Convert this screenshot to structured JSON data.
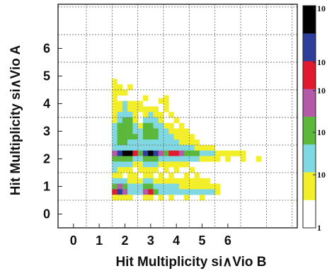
{
  "chart_data": {
    "type": "heatmap",
    "xlabel": "Hit Multiplicity si∧Vio B",
    "ylabel": "Hit Multiplicity si∧Vio A",
    "x_tick_labels": [
      "0",
      "1",
      "2",
      "3",
      "4",
      "5",
      "6"
    ],
    "y_tick_labels": [
      "0",
      "1",
      "2",
      "3",
      "4",
      "5",
      "6"
    ],
    "xlim": [
      -0.6,
      8.7
    ],
    "ylim": [
      -0.5,
      7.6
    ],
    "grid": true,
    "colorbar": {
      "scale": "log",
      "tick_labels": [
        "1",
        "10",
        "10",
        "10",
        "10",
        "10"
      ],
      "colors": [
        "#ffffff",
        "#f2ef2a",
        "#7fd8e2",
        "#5bb83a",
        "#b45aa8",
        "#e21a2d",
        "#2d3f9b",
        "#000000"
      ]
    },
    "cells": [
      [
        1.6,
        4.8,
        1
      ],
      [
        1.6,
        4.6,
        1
      ],
      [
        1.6,
        4.4,
        1
      ],
      [
        1.8,
        4.6,
        1
      ],
      [
        1.8,
        4.4,
        1
      ],
      [
        2.0,
        4.4,
        1
      ],
      [
        2.2,
        4.6,
        1
      ],
      [
        1.6,
        4.2,
        1
      ],
      [
        1.6,
        4.0,
        1
      ],
      [
        1.8,
        4.0,
        1
      ],
      [
        2.0,
        4.0,
        2
      ],
      [
        2.2,
        4.0,
        1
      ],
      [
        2.4,
        4.0,
        1
      ],
      [
        2.6,
        4.0,
        1
      ],
      [
        2.8,
        4.2,
        1
      ],
      [
        3.4,
        4.1,
        1
      ],
      [
        3.6,
        4.0,
        1
      ],
      [
        3.6,
        4.2,
        1
      ],
      [
        1.6,
        3.8,
        1
      ],
      [
        1.6,
        3.6,
        1
      ],
      [
        1.8,
        3.8,
        1
      ],
      [
        2.0,
        3.8,
        2
      ],
      [
        2.2,
        3.8,
        1
      ],
      [
        2.4,
        3.8,
        1
      ],
      [
        2.6,
        3.8,
        1
      ],
      [
        2.8,
        3.8,
        1
      ],
      [
        3.0,
        3.8,
        1
      ],
      [
        3.2,
        3.8,
        1
      ],
      [
        3.6,
        3.8,
        1
      ],
      [
        1.6,
        3.4,
        1
      ],
      [
        1.8,
        3.6,
        2
      ],
      [
        2.0,
        3.6,
        2
      ],
      [
        2.2,
        3.6,
        2
      ],
      [
        2.4,
        3.6,
        1
      ],
      [
        2.8,
        3.6,
        1
      ],
      [
        3.0,
        3.6,
        2
      ],
      [
        3.2,
        3.6,
        1
      ],
      [
        3.4,
        3.6,
        1
      ],
      [
        3.8,
        3.6,
        1
      ],
      [
        1.6,
        3.2,
        2
      ],
      [
        1.8,
        3.4,
        2
      ],
      [
        2.0,
        3.4,
        3
      ],
      [
        2.2,
        3.4,
        3
      ],
      [
        2.4,
        3.4,
        1
      ],
      [
        2.8,
        3.4,
        2
      ],
      [
        3.0,
        3.4,
        2
      ],
      [
        3.2,
        3.4,
        2
      ],
      [
        3.4,
        3.4,
        1
      ],
      [
        4.0,
        3.4,
        1
      ],
      [
        1.6,
        3.0,
        2
      ],
      [
        1.8,
        3.2,
        3
      ],
      [
        2.0,
        3.2,
        3
      ],
      [
        2.2,
        3.2,
        3
      ],
      [
        2.4,
        3.2,
        2
      ],
      [
        2.6,
        3.2,
        1
      ],
      [
        2.8,
        3.2,
        3
      ],
      [
        3.0,
        3.2,
        3
      ],
      [
        3.2,
        3.2,
        2
      ],
      [
        3.4,
        3.2,
        2
      ],
      [
        3.6,
        3.2,
        1
      ],
      [
        3.8,
        3.2,
        1
      ],
      [
        4.2,
        3.2,
        1
      ],
      [
        1.6,
        2.8,
        2
      ],
      [
        1.8,
        3.0,
        3
      ],
      [
        2.0,
        3.0,
        3
      ],
      [
        2.2,
        3.0,
        3
      ],
      [
        2.4,
        3.0,
        2
      ],
      [
        2.6,
        3.0,
        2
      ],
      [
        2.8,
        3.0,
        3
      ],
      [
        3.0,
        3.0,
        3
      ],
      [
        3.2,
        3.0,
        3
      ],
      [
        3.4,
        3.0,
        2
      ],
      [
        3.6,
        3.0,
        2
      ],
      [
        3.8,
        3.0,
        1
      ],
      [
        4.0,
        3.0,
        1
      ],
      [
        4.2,
        3.0,
        1
      ],
      [
        4.4,
        3.0,
        1
      ],
      [
        1.6,
        2.6,
        2
      ],
      [
        1.8,
        2.8,
        3
      ],
      [
        2.0,
        2.8,
        3
      ],
      [
        2.2,
        2.8,
        3
      ],
      [
        2.4,
        2.8,
        3
      ],
      [
        2.6,
        2.8,
        2
      ],
      [
        2.8,
        2.8,
        3
      ],
      [
        3.0,
        2.8,
        3
      ],
      [
        3.2,
        2.8,
        3
      ],
      [
        3.4,
        2.8,
        2
      ],
      [
        3.6,
        2.8,
        2
      ],
      [
        3.8,
        2.8,
        2
      ],
      [
        4.0,
        2.8,
        1
      ],
      [
        4.2,
        2.8,
        1
      ],
      [
        4.4,
        2.8,
        1
      ],
      [
        4.6,
        2.8,
        1
      ],
      [
        1.6,
        2.4,
        2
      ],
      [
        1.8,
        2.6,
        3
      ],
      [
        2.0,
        2.6,
        3
      ],
      [
        2.2,
        2.6,
        2
      ],
      [
        2.4,
        2.6,
        2
      ],
      [
        2.6,
        2.6,
        2
      ],
      [
        2.8,
        2.6,
        2
      ],
      [
        3.0,
        2.6,
        2
      ],
      [
        3.2,
        2.6,
        2
      ],
      [
        3.4,
        2.6,
        2
      ],
      [
        3.6,
        2.6,
        2
      ],
      [
        3.8,
        2.6,
        2
      ],
      [
        4.0,
        2.6,
        2
      ],
      [
        4.2,
        2.6,
        1
      ],
      [
        4.4,
        2.6,
        1
      ],
      [
        4.6,
        2.6,
        1
      ],
      [
        4.8,
        2.6,
        1
      ],
      [
        1.8,
        2.4,
        2
      ],
      [
        2.0,
        2.4,
        2
      ],
      [
        2.2,
        2.4,
        2
      ],
      [
        2.4,
        2.4,
        2
      ],
      [
        2.6,
        2.4,
        2
      ],
      [
        2.8,
        2.4,
        2
      ],
      [
        3.0,
        2.4,
        2
      ],
      [
        3.2,
        2.4,
        2
      ],
      [
        3.4,
        2.4,
        2
      ],
      [
        3.6,
        2.4,
        2
      ],
      [
        3.8,
        2.4,
        2
      ],
      [
        4.0,
        2.4,
        2
      ],
      [
        4.2,
        2.4,
        2
      ],
      [
        4.4,
        2.4,
        2
      ],
      [
        4.6,
        2.4,
        2
      ],
      [
        4.8,
        2.4,
        1
      ],
      [
        5.0,
        2.4,
        1
      ],
      [
        5.2,
        2.4,
        1
      ],
      [
        5.4,
        2.4,
        1
      ],
      [
        1.6,
        2.2,
        4
      ],
      [
        1.8,
        2.2,
        6
      ],
      [
        2.0,
        2.2,
        7
      ],
      [
        2.2,
        2.2,
        7
      ],
      [
        2.4,
        2.2,
        5
      ],
      [
        2.6,
        2.2,
        3
      ],
      [
        2.8,
        2.2,
        6
      ],
      [
        3.0,
        2.2,
        7
      ],
      [
        3.2,
        2.2,
        6
      ],
      [
        3.4,
        2.2,
        4
      ],
      [
        3.6,
        2.2,
        3
      ],
      [
        3.8,
        2.2,
        5
      ],
      [
        4.0,
        2.2,
        5
      ],
      [
        4.2,
        2.2,
        4
      ],
      [
        4.4,
        2.2,
        3
      ],
      [
        4.6,
        2.2,
        3
      ],
      [
        4.8,
        2.2,
        3
      ],
      [
        5.0,
        2.2,
        2
      ],
      [
        5.2,
        2.2,
        2
      ],
      [
        5.4,
        2.2,
        2
      ],
      [
        5.6,
        2.2,
        1
      ],
      [
        5.8,
        2.2,
        1
      ],
      [
        6.0,
        2.2,
        1
      ],
      [
        6.2,
        2.2,
        1
      ],
      [
        6.4,
        2.2,
        1
      ],
      [
        6.6,
        2.2,
        1
      ],
      [
        1.6,
        2.0,
        3
      ],
      [
        1.8,
        2.0,
        3
      ],
      [
        2.0,
        2.0,
        3
      ],
      [
        2.2,
        2.0,
        3
      ],
      [
        2.4,
        2.0,
        2
      ],
      [
        2.6,
        2.0,
        2
      ],
      [
        2.8,
        2.0,
        3
      ],
      [
        3.0,
        2.0,
        3
      ],
      [
        3.2,
        2.0,
        3
      ],
      [
        3.4,
        2.0,
        2
      ],
      [
        3.6,
        2.0,
        2
      ],
      [
        3.8,
        2.0,
        2
      ],
      [
        4.0,
        2.0,
        2
      ],
      [
        4.2,
        2.0,
        2
      ],
      [
        4.4,
        2.0,
        2
      ],
      [
        4.6,
        2.0,
        2
      ],
      [
        4.8,
        2.0,
        2
      ],
      [
        5.0,
        2.0,
        1
      ],
      [
        5.2,
        2.0,
        1
      ],
      [
        5.4,
        2.0,
        1
      ],
      [
        5.6,
        2.0,
        1
      ],
      [
        6.0,
        2.0,
        1
      ],
      [
        6.6,
        2.0,
        1
      ],
      [
        7.2,
        2.0,
        1
      ],
      [
        1.6,
        1.8,
        2
      ],
      [
        1.8,
        1.8,
        2
      ],
      [
        2.0,
        1.8,
        2
      ],
      [
        2.2,
        1.8,
        2
      ],
      [
        2.4,
        1.8,
        1
      ],
      [
        2.6,
        1.8,
        1
      ],
      [
        2.8,
        1.8,
        2
      ],
      [
        3.0,
        1.8,
        2
      ],
      [
        3.2,
        1.8,
        2
      ],
      [
        3.4,
        1.8,
        1
      ],
      [
        3.6,
        1.8,
        1
      ],
      [
        3.8,
        1.8,
        1
      ],
      [
        4.0,
        1.8,
        1
      ],
      [
        4.2,
        1.8,
        1
      ],
      [
        4.4,
        1.8,
        1
      ],
      [
        1.6,
        1.6,
        2
      ],
      [
        1.8,
        1.6,
        1
      ],
      [
        2.0,
        1.6,
        1
      ],
      [
        2.2,
        1.6,
        1
      ],
      [
        2.6,
        1.6,
        1
      ],
      [
        2.8,
        1.6,
        1
      ],
      [
        3.0,
        1.6,
        1
      ],
      [
        3.2,
        1.6,
        1
      ],
      [
        3.6,
        1.6,
        1
      ],
      [
        4.0,
        1.6,
        1
      ],
      [
        4.6,
        1.6,
        1
      ],
      [
        1.6,
        1.4,
        1
      ],
      [
        1.8,
        1.4,
        1
      ],
      [
        2.2,
        1.4,
        1
      ],
      [
        2.4,
        1.4,
        1
      ],
      [
        2.8,
        1.4,
        1
      ],
      [
        3.0,
        1.4,
        1
      ],
      [
        3.4,
        1.4,
        1
      ],
      [
        3.8,
        1.4,
        1
      ],
      [
        4.4,
        1.4,
        1
      ],
      [
        4.8,
        1.4,
        1
      ],
      [
        1.6,
        1.2,
        2
      ],
      [
        1.8,
        1.2,
        2
      ],
      [
        2.0,
        1.2,
        2
      ],
      [
        2.2,
        1.2,
        1
      ],
      [
        2.4,
        1.2,
        1
      ],
      [
        2.6,
        1.2,
        1
      ],
      [
        2.8,
        1.2,
        2
      ],
      [
        3.0,
        1.2,
        2
      ],
      [
        3.2,
        1.2,
        1
      ],
      [
        3.4,
        1.2,
        1
      ],
      [
        3.6,
        1.2,
        1
      ],
      [
        3.8,
        1.2,
        1
      ],
      [
        4.0,
        1.2,
        1
      ],
      [
        4.2,
        1.2,
        1
      ],
      [
        4.4,
        1.2,
        1
      ],
      [
        4.6,
        1.2,
        1
      ],
      [
        4.8,
        1.2,
        1
      ],
      [
        5.0,
        1.2,
        1
      ],
      [
        5.2,
        1.2,
        1
      ],
      [
        1.6,
        1.0,
        3
      ],
      [
        1.8,
        1.0,
        4
      ],
      [
        2.0,
        1.0,
        3
      ],
      [
        2.2,
        1.0,
        2
      ],
      [
        2.4,
        1.0,
        2
      ],
      [
        2.6,
        1.0,
        2
      ],
      [
        2.8,
        1.0,
        3
      ],
      [
        3.0,
        1.0,
        3
      ],
      [
        3.2,
        1.0,
        2
      ],
      [
        3.4,
        1.0,
        2
      ],
      [
        3.6,
        1.0,
        2
      ],
      [
        3.8,
        1.0,
        2
      ],
      [
        4.0,
        1.0,
        2
      ],
      [
        4.2,
        1.0,
        1
      ],
      [
        4.4,
        1.0,
        1
      ],
      [
        4.6,
        1.0,
        1
      ],
      [
        4.8,
        1.0,
        1
      ],
      [
        5.0,
        1.0,
        1
      ],
      [
        5.2,
        1.0,
        1
      ],
      [
        5.4,
        1.0,
        1
      ],
      [
        5.6,
        1.0,
        1
      ],
      [
        1.6,
        0.8,
        5
      ],
      [
        1.8,
        0.8,
        6
      ],
      [
        2.0,
        0.8,
        4
      ],
      [
        2.2,
        0.8,
        2
      ],
      [
        2.4,
        0.8,
        2
      ],
      [
        2.6,
        0.8,
        2
      ],
      [
        2.8,
        0.8,
        4
      ],
      [
        3.0,
        0.8,
        5
      ],
      [
        3.2,
        0.8,
        3
      ],
      [
        3.4,
        0.8,
        2
      ],
      [
        3.6,
        0.8,
        2
      ],
      [
        3.8,
        0.8,
        2
      ],
      [
        4.0,
        0.8,
        2
      ],
      [
        4.2,
        0.8,
        2
      ],
      [
        4.4,
        0.8,
        2
      ],
      [
        4.6,
        0.8,
        2
      ],
      [
        4.8,
        0.8,
        2
      ],
      [
        5.0,
        0.8,
        2
      ],
      [
        5.2,
        0.8,
        2
      ],
      [
        5.4,
        0.8,
        2
      ],
      [
        5.6,
        0.8,
        1
      ],
      [
        1.6,
        0.6,
        1
      ],
      [
        1.8,
        0.6,
        1
      ],
      [
        2.0,
        0.6,
        1
      ],
      [
        2.2,
        0.6,
        1
      ],
      [
        2.8,
        0.6,
        1
      ],
      [
        3.0,
        0.6,
        1
      ],
      [
        3.4,
        0.6,
        1
      ],
      [
        3.8,
        0.6,
        1
      ],
      [
        4.4,
        0.6,
        1
      ],
      [
        5.0,
        0.6,
        1
      ]
    ]
  }
}
